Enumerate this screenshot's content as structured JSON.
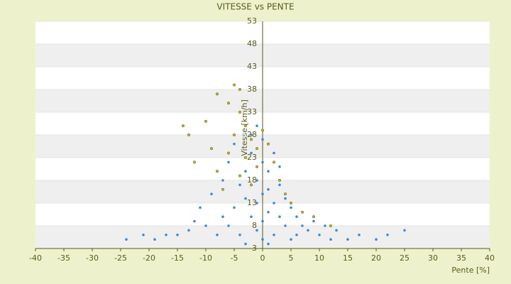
{
  "chart_data": {
    "type": "scatter",
    "title": "VITESSE vs PENTE",
    "xlabel": "Pente [%]",
    "ylabel": "Vitesse [km/h]",
    "xlim": [
      -40,
      40
    ],
    "xticks": [
      -40,
      -35,
      -30,
      -25,
      -20,
      -15,
      -10,
      -5,
      0,
      5,
      10,
      15,
      20,
      25,
      30,
      35,
      40
    ],
    "ylim": [
      3,
      53
    ],
    "yticks": [
      3,
      8,
      13,
      18,
      23,
      28,
      33,
      38,
      43,
      48,
      53
    ],
    "grid": true,
    "series": [
      {
        "color": "#3a8ad8",
        "x": [
          -24,
          -21,
          -19,
          -17,
          -15,
          -13,
          -12,
          -11,
          -10,
          -9,
          -8,
          -7,
          -7,
          -6,
          -6,
          -5,
          -5,
          -4,
          -4,
          -3,
          -3,
          -3,
          -2,
          -2,
          -2,
          -1,
          -1,
          -1,
          -1,
          0,
          0,
          0,
          0,
          0,
          1,
          1,
          1,
          1,
          2,
          2,
          2,
          3,
          3,
          3,
          4,
          4,
          5,
          5,
          6,
          6,
          7,
          8,
          9,
          10,
          11,
          12,
          13,
          15,
          17,
          20,
          22,
          25
        ],
        "values": [
          5,
          6,
          5,
          6,
          6,
          7,
          9,
          12,
          8,
          15,
          6,
          18,
          10,
          22,
          8,
          12,
          26,
          17,
          6,
          20,
          14,
          4,
          24,
          10,
          28,
          18,
          7,
          13,
          30,
          22,
          5,
          15,
          9,
          27,
          20,
          11,
          4,
          16,
          24,
          13,
          6,
          17,
          10,
          21,
          8,
          14,
          12,
          5,
          10,
          6,
          8,
          7,
          9,
          6,
          8,
          5,
          7,
          5,
          6,
          5,
          6,
          7
        ]
      },
      {
        "color": "#c8b400",
        "x": [
          -14,
          -13,
          -12,
          -10,
          -9,
          -8,
          -8,
          -7,
          -6,
          -6,
          -5,
          -5,
          -4,
          -4,
          -4,
          -3,
          -3,
          -2,
          -2,
          -1,
          -1,
          0,
          1,
          2,
          3,
          4,
          5,
          7,
          9,
          12
        ],
        "values": [
          30,
          28,
          22,
          31,
          25,
          20,
          37,
          16,
          35,
          24,
          39,
          28,
          38,
          33,
          19,
          30,
          23,
          27,
          17,
          25,
          21,
          29,
          26,
          22,
          18,
          15,
          13,
          11,
          10,
          8
        ]
      }
    ]
  }
}
